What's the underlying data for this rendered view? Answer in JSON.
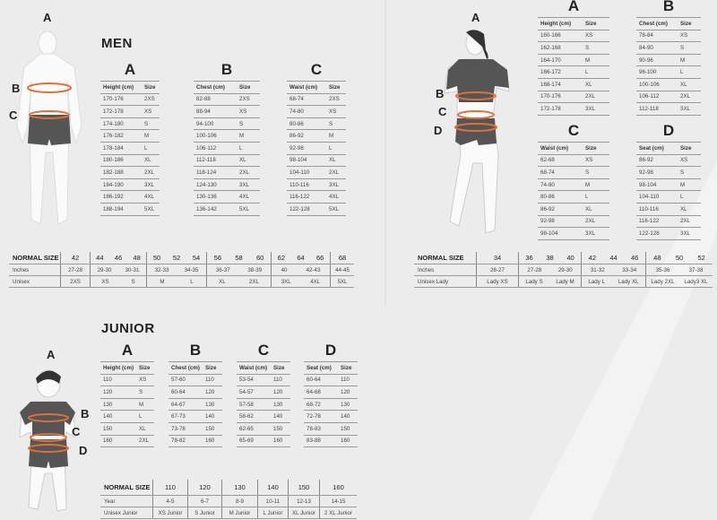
{
  "men": {
    "title": "MEN",
    "figure_letters": [
      "A",
      "B",
      "C"
    ],
    "tables": [
      {
        "letter": "A",
        "headers": [
          "Height (cm)",
          "Size"
        ],
        "rows": [
          [
            "170-176",
            "2XS"
          ],
          [
            "172-178",
            "XS"
          ],
          [
            "174-180",
            "S"
          ],
          [
            "176-182",
            "M"
          ],
          [
            "178-184",
            "L"
          ],
          [
            "180-186",
            "XL"
          ],
          [
            "182-188",
            "2XL"
          ],
          [
            "184-190",
            "3XL"
          ],
          [
            "186-192",
            "4XL"
          ],
          [
            "188-194",
            "5XL"
          ]
        ]
      },
      {
        "letter": "B",
        "headers": [
          "Chest (cm)",
          "Size"
        ],
        "rows": [
          [
            "82-88",
            "2XS"
          ],
          [
            "88-94",
            "XS"
          ],
          [
            "94-100",
            "S"
          ],
          [
            "100-106",
            "M"
          ],
          [
            "106-112",
            "L"
          ],
          [
            "112-118",
            "XL"
          ],
          [
            "118-124",
            "2XL"
          ],
          [
            "124-130",
            "3XL"
          ],
          [
            "130-136",
            "4XL"
          ],
          [
            "136-142",
            "5XL"
          ]
        ]
      },
      {
        "letter": "C",
        "headers": [
          "Waist (cm)",
          "Size"
        ],
        "rows": [
          [
            "68-74",
            "2XS"
          ],
          [
            "74-80",
            "XS"
          ],
          [
            "80-86",
            "S"
          ],
          [
            "86-92",
            "M"
          ],
          [
            "92-98",
            "L"
          ],
          [
            "98-104",
            "XL"
          ],
          [
            "104-110",
            "2XL"
          ],
          [
            "110-116",
            "3XL"
          ],
          [
            "116-122",
            "4XL"
          ],
          [
            "122-128",
            "5XL"
          ]
        ]
      }
    ],
    "normal": {
      "rows": [
        {
          "label": "NORMAL SIZE",
          "groups": [
            [
              "42"
            ],
            [
              "44",
              "46",
              "48"
            ],
            [
              "50",
              "52",
              "54"
            ],
            [
              "56",
              "58",
              "60"
            ],
            [
              "62",
              "64",
              "66"
            ],
            [
              "68"
            ]
          ]
        },
        {
          "label": "Inches",
          "groups": [
            [
              "27-28"
            ],
            [
              "29-30",
              "30-31"
            ],
            [
              "32-33",
              "34-35"
            ],
            [
              "36-37",
              "38-39"
            ],
            [
              "40",
              "42-43"
            ],
            [
              "44-45"
            ]
          ]
        },
        {
          "label": "Unisex",
          "groups": [
            [
              "2XS"
            ],
            [
              "XS",
              "S"
            ],
            [
              "M",
              "L"
            ],
            [
              "XL",
              "2XL"
            ],
            [
              "3XL",
              "4XL"
            ],
            [
              "5XL"
            ]
          ]
        }
      ]
    }
  },
  "women": {
    "figure_letters": [
      "A",
      "B",
      "C",
      "D"
    ],
    "tables": [
      {
        "letter": "A",
        "headers": [
          "Height (cm)",
          "Size"
        ],
        "rows": [
          [
            "160-166",
            "XS"
          ],
          [
            "162-168",
            "S"
          ],
          [
            "164-170",
            "M"
          ],
          [
            "166-172",
            "L"
          ],
          [
            "168-174",
            "XL"
          ],
          [
            "170-176",
            "2XL"
          ],
          [
            "172-178",
            "3XL"
          ]
        ]
      },
      {
        "letter": "B",
        "headers": [
          "Chest (cm)",
          "Size"
        ],
        "rows": [
          [
            "78-84",
            "XS"
          ],
          [
            "84-90",
            "S"
          ],
          [
            "90-96",
            "M"
          ],
          [
            "96-100",
            "L"
          ],
          [
            "100-106",
            "XL"
          ],
          [
            "106-112",
            "2XL"
          ],
          [
            "112-118",
            "3XL"
          ]
        ]
      },
      {
        "letter": "C",
        "headers": [
          "Waist (cm)",
          "Size"
        ],
        "rows": [
          [
            "62-68",
            "XS"
          ],
          [
            "68-74",
            "S"
          ],
          [
            "74-80",
            "M"
          ],
          [
            "80-86",
            "L"
          ],
          [
            "86-92",
            "XL"
          ],
          [
            "92-98",
            "2XL"
          ],
          [
            "98-104",
            "3XL"
          ]
        ]
      },
      {
        "letter": "D",
        "headers": [
          "Seat (cm)",
          "Size"
        ],
        "rows": [
          [
            "86-92",
            "XS"
          ],
          [
            "92-98",
            "S"
          ],
          [
            "98-104",
            "M"
          ],
          [
            "104-110",
            "L"
          ],
          [
            "110-116",
            "XL"
          ],
          [
            "116-122",
            "2XL"
          ],
          [
            "122-128",
            "3XL"
          ]
        ]
      }
    ],
    "normal": {
      "rows": [
        {
          "label": "NORMAL SIZE",
          "groups": [
            [
              "34"
            ],
            [
              "36",
              "38",
              "40"
            ],
            [
              "42",
              "44",
              "46"
            ],
            [
              "48",
              "50",
              "52"
            ]
          ]
        },
        {
          "label": "Inches",
          "groups": [
            [
              "26-27"
            ],
            [
              "27-28",
              "29-30"
            ],
            [
              "31-32",
              "33-34"
            ],
            [
              "35-36",
              "37-38"
            ]
          ]
        },
        {
          "label": "Unisex Lady",
          "groups": [
            [
              "Lady XS"
            ],
            [
              "Lady S",
              "Lady M"
            ],
            [
              "Lady L",
              "Lady XL"
            ],
            [
              "Lady 2XL",
              "Lady3 XL"
            ]
          ]
        }
      ]
    }
  },
  "junior": {
    "title": "JUNIOR",
    "figure_letters": [
      "A",
      "B",
      "C",
      "D"
    ],
    "tables": [
      {
        "letter": "A",
        "headers": [
          "Height (cm)",
          "Size"
        ],
        "rows": [
          [
            "110",
            "XS"
          ],
          [
            "120",
            "S"
          ],
          [
            "130",
            "M"
          ],
          [
            "140",
            "L"
          ],
          [
            "150",
            "XL"
          ],
          [
            "160",
            "2XL"
          ]
        ]
      },
      {
        "letter": "B",
        "headers": [
          "Chest (cm)",
          "Size"
        ],
        "rows": [
          [
            "57-60",
            "110"
          ],
          [
            "60-64",
            "120"
          ],
          [
            "64-67",
            "130"
          ],
          [
            "67-73",
            "140"
          ],
          [
            "73-78",
            "150"
          ],
          [
            "78-82",
            "160"
          ]
        ]
      },
      {
        "letter": "C",
        "headers": [
          "Waist (cm)",
          "Size"
        ],
        "rows": [
          [
            "53-54",
            "110"
          ],
          [
            "54-57",
            "120"
          ],
          [
            "57-58",
            "130"
          ],
          [
            "58-62",
            "140"
          ],
          [
            "62-65",
            "150"
          ],
          [
            "65-69",
            "160"
          ]
        ]
      },
      {
        "letter": "D",
        "headers": [
          "Seat (cm)",
          "Size"
        ],
        "rows": [
          [
            "60-64",
            "110"
          ],
          [
            "64-68",
            "120"
          ],
          [
            "68-72",
            "130"
          ],
          [
            "72-78",
            "140"
          ],
          [
            "78-83",
            "150"
          ],
          [
            "83-88",
            "160"
          ]
        ]
      }
    ],
    "normal": {
      "rows": [
        {
          "label": "NORMAL SIZE",
          "groups": [
            [
              "110"
            ],
            [
              "120"
            ],
            [
              "130"
            ],
            [
              "140"
            ],
            [
              "150"
            ],
            [
              "160"
            ]
          ]
        },
        {
          "label": "Year",
          "groups": [
            [
              "4-5"
            ],
            [
              "6-7"
            ],
            [
              "8-9"
            ],
            [
              "10-11"
            ],
            [
              "12-13"
            ],
            [
              "14-15"
            ]
          ]
        },
        {
          "label": "Unisex Junior",
          "groups": [
            [
              "XS Junior"
            ],
            [
              "S Junior"
            ],
            [
              "M Junior"
            ],
            [
              "L Junior"
            ],
            [
              "XL Junior"
            ],
            [
              "2 XL Junior"
            ]
          ]
        }
      ]
    }
  },
  "colors": {
    "background": "#ececec",
    "measure_band": "#e0703a",
    "shorts": "#555555",
    "body": "#f8f8f8"
  }
}
